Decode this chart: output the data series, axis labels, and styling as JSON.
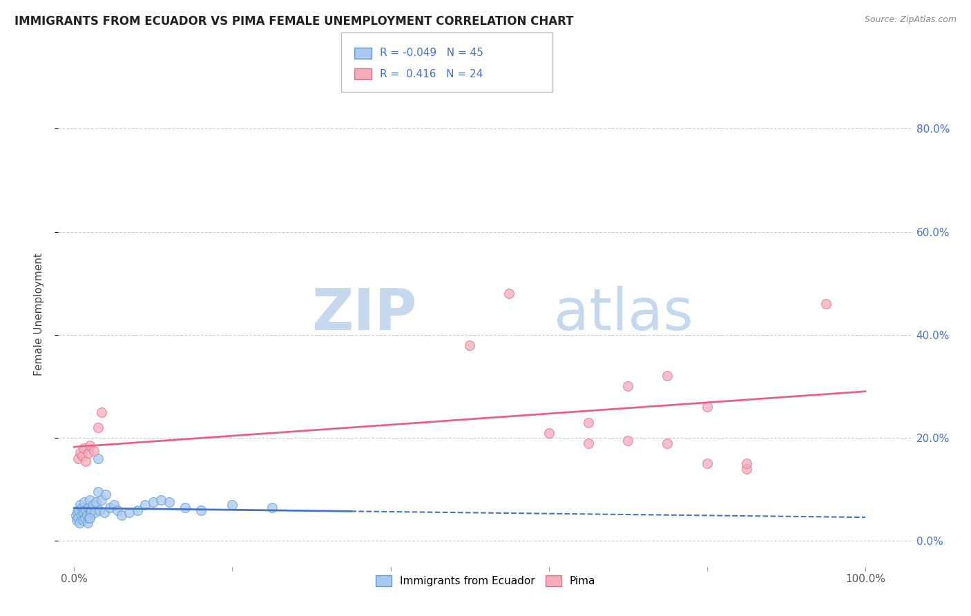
{
  "title": "IMMIGRANTS FROM ECUADOR VS PIMA FEMALE UNEMPLOYMENT CORRELATION CHART",
  "source": "Source: ZipAtlas.com",
  "ylabel": "Female Unemployment",
  "xticklabels": [
    "0.0%",
    "",
    "",
    "",
    "",
    "",
    "",
    "",
    "",
    "",
    "100.0%"
  ],
  "xticks": [
    0,
    0.1,
    0.2,
    0.3,
    0.4,
    0.5,
    0.6,
    0.7,
    0.8,
    0.9,
    1.0
  ],
  "yticklabels": [
    "0.0%",
    "20.0%",
    "40.0%",
    "60.0%",
    "80.0%"
  ],
  "yticks": [
    0,
    0.2,
    0.4,
    0.6,
    0.8
  ],
  "ylim": [
    -0.05,
    0.93
  ],
  "xlim": [
    -0.02,
    1.06
  ],
  "series1_color": "#A8C8F0",
  "series1_edgecolor": "#5B9BD5",
  "series2_color": "#F4ABBA",
  "series2_edgecolor": "#E07090",
  "trendline1_color": "#4472C4",
  "trendline2_color": "#E8608A",
  "R1": -0.049,
  "N1": 45,
  "R2": 0.416,
  "N2": 24,
  "legend_label1": "Immigrants from Ecuador",
  "legend_label2": "Pima",
  "background_color": "#FFFFFF",
  "scatter1_x": [
    0.002,
    0.003,
    0.004,
    0.005,
    0.006,
    0.007,
    0.008,
    0.009,
    0.01,
    0.011,
    0.012,
    0.013,
    0.014,
    0.015,
    0.016,
    0.017,
    0.018,
    0.019,
    0.02,
    0.021,
    0.022,
    0.024,
    0.026,
    0.028,
    0.03,
    0.032,
    0.035,
    0.038,
    0.04,
    0.045,
    0.05,
    0.055,
    0.06,
    0.07,
    0.08,
    0.09,
    0.1,
    0.11,
    0.12,
    0.14,
    0.16,
    0.2,
    0.25,
    0.03,
    0.02
  ],
  "scatter1_y": [
    0.05,
    0.04,
    0.055,
    0.045,
    0.06,
    0.035,
    0.07,
    0.05,
    0.065,
    0.04,
    0.055,
    0.075,
    0.045,
    0.06,
    0.05,
    0.035,
    0.065,
    0.045,
    0.08,
    0.055,
    0.06,
    0.07,
    0.055,
    0.075,
    0.095,
    0.06,
    0.08,
    0.055,
    0.09,
    0.065,
    0.07,
    0.06,
    0.05,
    0.055,
    0.06,
    0.07,
    0.075,
    0.08,
    0.075,
    0.065,
    0.06,
    0.07,
    0.065,
    0.16,
    0.045
  ],
  "scatter2_x": [
    0.005,
    0.008,
    0.01,
    0.012,
    0.015,
    0.018,
    0.02,
    0.025,
    0.03,
    0.035,
    0.6,
    0.65,
    0.7,
    0.75,
    0.8,
    0.85,
    0.55,
    0.5,
    0.65,
    0.7,
    0.75,
    0.8,
    0.85,
    0.95
  ],
  "scatter2_y": [
    0.16,
    0.17,
    0.165,
    0.18,
    0.155,
    0.17,
    0.185,
    0.175,
    0.22,
    0.25,
    0.21,
    0.23,
    0.3,
    0.32,
    0.15,
    0.14,
    0.48,
    0.38,
    0.19,
    0.195,
    0.19,
    0.26,
    0.15,
    0.46
  ],
  "marker_size": 100
}
